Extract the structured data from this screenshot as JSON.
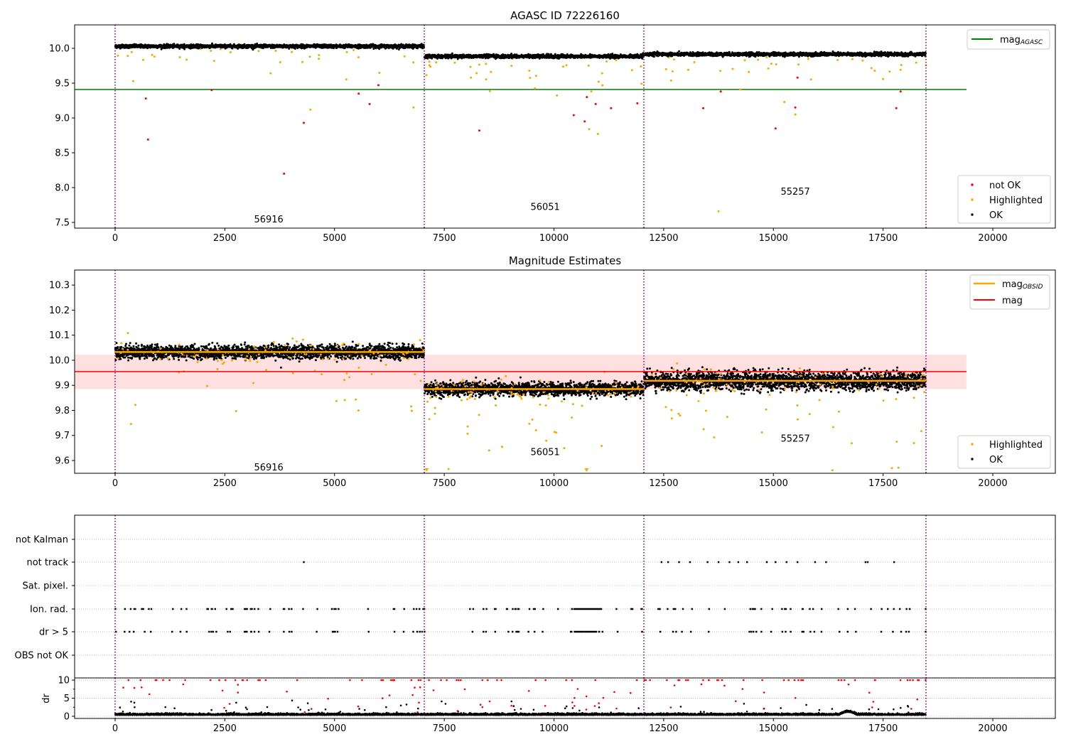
{
  "chart_data": [
    {
      "type": "scatter",
      "title": "AGASC ID 72226160",
      "xlim": [
        -923,
        21425
      ],
      "ylim": [
        7.418,
        10.337
      ],
      "xticks": [
        0,
        2500,
        5000,
        7500,
        10000,
        12500,
        15000,
        17500,
        20000
      ],
      "yticks": [
        "7.5",
        "8.0",
        "8.5",
        "9.0",
        "9.5",
        "10.0"
      ],
      "obsid_boundaries": [
        0,
        7045,
        12049,
        18478
      ],
      "obsids": [
        {
          "label": "56916",
          "x_range": [
            0,
            7045
          ],
          "mean_mag": 10.03,
          "label_pos": [
            3500,
            7.55
          ]
        },
        {
          "label": "56051",
          "x_range": [
            7045,
            12049
          ],
          "mean_mag": 9.885,
          "label_pos": [
            9800,
            7.73
          ]
        },
        {
          "label": "55257",
          "x_range": [
            12049,
            18478
          ],
          "mean_mag": 9.915,
          "label_pos": [
            15500,
            7.95
          ]
        }
      ],
      "mag_agasc": 9.41,
      "not_ok_points": [
        [
          700,
          9.28
        ],
        [
          750,
          8.69
        ],
        [
          2200,
          9.4
        ],
        [
          3850,
          8.2
        ],
        [
          4300,
          8.93
        ],
        [
          5550,
          9.35
        ],
        [
          5800,
          9.2
        ],
        [
          6000,
          9.47
        ],
        [
          8300,
          8.82
        ],
        [
          10450,
          9.04
        ],
        [
          10700,
          8.95
        ],
        [
          10750,
          9.3
        ],
        [
          10950,
          9.2
        ],
        [
          11300,
          9.14
        ],
        [
          11900,
          9.21
        ],
        [
          13400,
          9.14
        ],
        [
          13800,
          9.38
        ],
        [
          15050,
          8.85
        ],
        [
          15500,
          9.15
        ],
        [
          15550,
          9.58
        ],
        [
          17800,
          9.14
        ],
        [
          17900,
          9.38
        ]
      ],
      "highlighted_outliers": [
        [
          13750,
          7.66
        ],
        [
          10800,
          8.84
        ],
        [
          11000,
          8.77
        ],
        [
          4450,
          9.12
        ],
        [
          6800,
          9.15
        ],
        [
          15250,
          9.23
        ],
        [
          15500,
          9.05
        ],
        [
          17500,
          9.56
        ]
      ],
      "legend_lines": {
        "mag_label": "mag",
        "mag_sub": "AGASC",
        "position": "upper right"
      },
      "legend_points": {
        "items": [
          "not OK",
          "Highlighted",
          "OK"
        ],
        "position": "lower right"
      }
    },
    {
      "type": "scatter",
      "title": "Magnitude Estimates",
      "xlim": [
        -923,
        21425
      ],
      "ylim": [
        9.549,
        10.36
      ],
      "xticks": [
        0,
        2500,
        5000,
        7500,
        10000,
        12500,
        15000,
        17500,
        20000
      ],
      "yticks": [
        "9.6",
        "9.7",
        "9.8",
        "9.9",
        "10.0",
        "10.1",
        "10.2",
        "10.3"
      ],
      "obsids": [
        {
          "label": "56916",
          "x_range": [
            0,
            7045
          ],
          "mag_obsid": 10.033,
          "label_pos": [
            3500,
            9.575
          ]
        },
        {
          "label": "56051",
          "x_range": [
            7045,
            12049
          ],
          "mag_obsid": 9.885,
          "label_pos": [
            9800,
            9.635
          ]
        },
        {
          "label": "55257",
          "x_range": [
            12049,
            18478
          ],
          "mag_obsid": 9.918,
          "label_pos": [
            15500,
            9.69
          ]
        }
      ],
      "mag": 9.955,
      "mag_band": [
        9.885,
        10.022
      ],
      "legend_lines": {
        "obsid_label": "mag",
        "obsid_sub": "OBSID",
        "mag_label": "mag",
        "position": "upper right"
      },
      "legend_points": {
        "items": [
          "Highlighted",
          "OK"
        ],
        "position": "lower right"
      }
    },
    {
      "type": "scatter",
      "title": "",
      "categories": [
        "not Kalman",
        "not track",
        "Sat. pixel.",
        "Ion. rad.",
        "dr > 5",
        "OBS not OK"
      ],
      "dr_ylabel": "dr",
      "dr_ylim": [
        -0.6,
        10.6
      ],
      "dr_yticks": [
        "0",
        "5",
        "10"
      ],
      "xticks": [
        0,
        2500,
        5000,
        7500,
        10000,
        12500,
        15000,
        17500,
        20000
      ],
      "not_track_x": [
        4300,
        12450,
        12600,
        12850,
        13100,
        13500,
        13750,
        14000,
        14200,
        14400,
        14850,
        15050,
        15300,
        15550,
        15950,
        16200,
        17100,
        17150,
        17750
      ]
    }
  ]
}
